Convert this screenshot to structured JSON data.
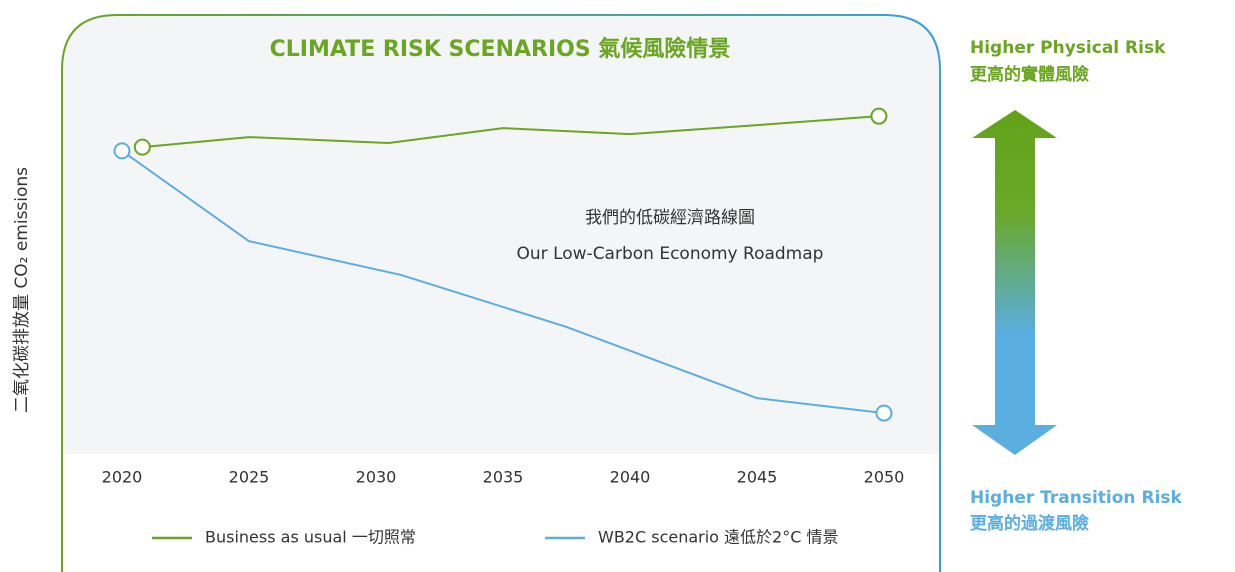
{
  "chart_data": {
    "type": "line",
    "title": "CLIMATE RISK SCENARIOS 氣候風險情景",
    "y_axis_label": "二氧化碳排放量 CO₂ emissions",
    "annotation": [
      "我們的低碳經濟路線圖",
      "Our Low-Carbon Economy Roadmap"
    ],
    "risk_labels": {
      "top": [
        "Higher Physical Risk",
        "更高的實體風險"
      ],
      "bottom": [
        "Higher Transition Risk",
        "更高的過渡風險"
      ]
    },
    "xlim": [
      2020,
      2050
    ],
    "xticks": [
      2020,
      2025,
      2030,
      2035,
      2040,
      2045,
      2050
    ],
    "ylim": [
      0,
      100
    ],
    "series": [
      {
        "name": "Business as usual 一切照常",
        "color": "#6aa621",
        "x": [
          2020.8,
          2025,
          2030.5,
          2035,
          2040,
          2045,
          2049.8
        ],
        "values": [
          82,
          84.7,
          83.1,
          87.1,
          85.5,
          87.9,
          90.3
        ]
      },
      {
        "name": "WB2C scenario 遠低於2°C 情景",
        "color": "#5aaee0",
        "x": [
          2020,
          2025,
          2031,
          2037.5,
          2045,
          2050
        ],
        "values": [
          81,
          56.8,
          47.7,
          33.8,
          14.7,
          10.7
        ]
      }
    ]
  }
}
